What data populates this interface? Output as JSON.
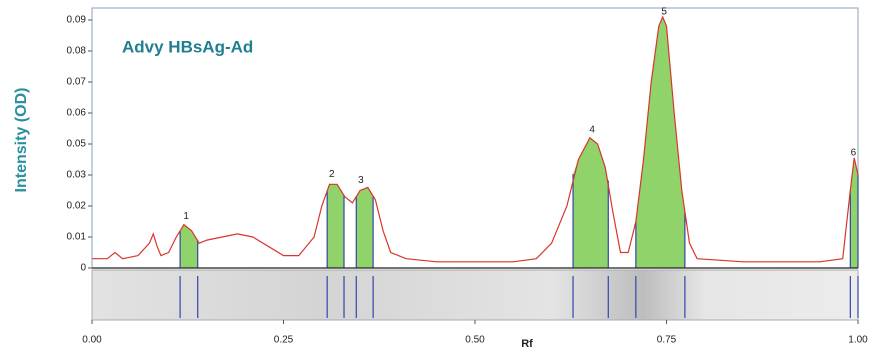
{
  "chart_data": {
    "type": "line",
    "title": "Advy HBsAg-Ad",
    "y_label": "Intensity (OD)",
    "x_label": "Rf",
    "color": "#d8362a",
    "peak_color": "#8fd36a",
    "lane_line_color": "#3344aa",
    "xlim": [
      0,
      1
    ],
    "xticks": [
      {
        "value": 0,
        "label": "0.00"
      },
      0.25,
      {
        "value": 0.5,
        "label": "0.50"
      },
      0.75,
      {
        "value": 1,
        "label": "1.00"
      }
    ],
    "ylim": [
      0,
      0.094
    ],
    "yticks": [
      0,
      0.01,
      0.02,
      0.03,
      0.05,
      0.06,
      0.07,
      0.08,
      0.09
    ],
    "x": [
      0,
      0.02,
      0.03,
      0.04,
      0.06,
      0.075,
      0.08,
      0.085,
      0.09,
      0.1,
      0.11,
      0.12,
      0.13,
      0.14,
      0.15,
      0.17,
      0.19,
      0.21,
      0.23,
      0.25,
      0.27,
      0.29,
      0.3,
      0.31,
      0.32,
      0.33,
      0.34,
      0.35,
      0.36,
      0.37,
      0.38,
      0.39,
      0.41,
      0.45,
      0.5,
      0.55,
      0.58,
      0.6,
      0.62,
      0.635,
      0.65,
      0.66,
      0.67,
      0.68,
      0.69,
      0.7,
      0.71,
      0.72,
      0.73,
      0.74,
      0.745,
      0.75,
      0.76,
      0.77,
      0.78,
      0.79,
      0.85,
      0.9,
      0.95,
      0.98,
      0.99,
      0.995,
      1
    ],
    "values": [
      0.003,
      0.003,
      0.005,
      0.003,
      0.004,
      0.008,
      0.011,
      0.007,
      0.004,
      0.005,
      0.01,
      0.014,
      0.012,
      0.008,
      0.009,
      0.01,
      0.011,
      0.01,
      0.007,
      0.004,
      0.004,
      0.01,
      0.02,
      0.027,
      0.027,
      0.023,
      0.021,
      0.025,
      0.026,
      0.022,
      0.012,
      0.005,
      0.003,
      0.002,
      0.002,
      0.002,
      0.003,
      0.008,
      0.02,
      0.04,
      0.052,
      0.05,
      0.035,
      0.018,
      0.005,
      0.005,
      0.015,
      0.04,
      0.07,
      0.088,
      0.091,
      0.088,
      0.06,
      0.025,
      0.008,
      0.003,
      0.002,
      0.002,
      0.002,
      0.003,
      0.025,
      0.041,
      0.03
    ],
    "peaks": [
      {
        "label": "1",
        "x": 0.123,
        "start": 0.115,
        "end": 0.138
      },
      {
        "label": "2",
        "x": 0.313,
        "start": 0.307,
        "end": 0.329
      },
      {
        "label": "3",
        "x": 0.351,
        "start": 0.345,
        "end": 0.367
      },
      {
        "label": "4",
        "x": 0.653,
        "start": 0.628,
        "end": 0.674
      },
      {
        "label": "5",
        "x": 0.747,
        "start": 0.71,
        "end": 0.774
      },
      {
        "label": "6",
        "x": 0.994,
        "start": 0.99,
        "end": 1
      }
    ]
  }
}
